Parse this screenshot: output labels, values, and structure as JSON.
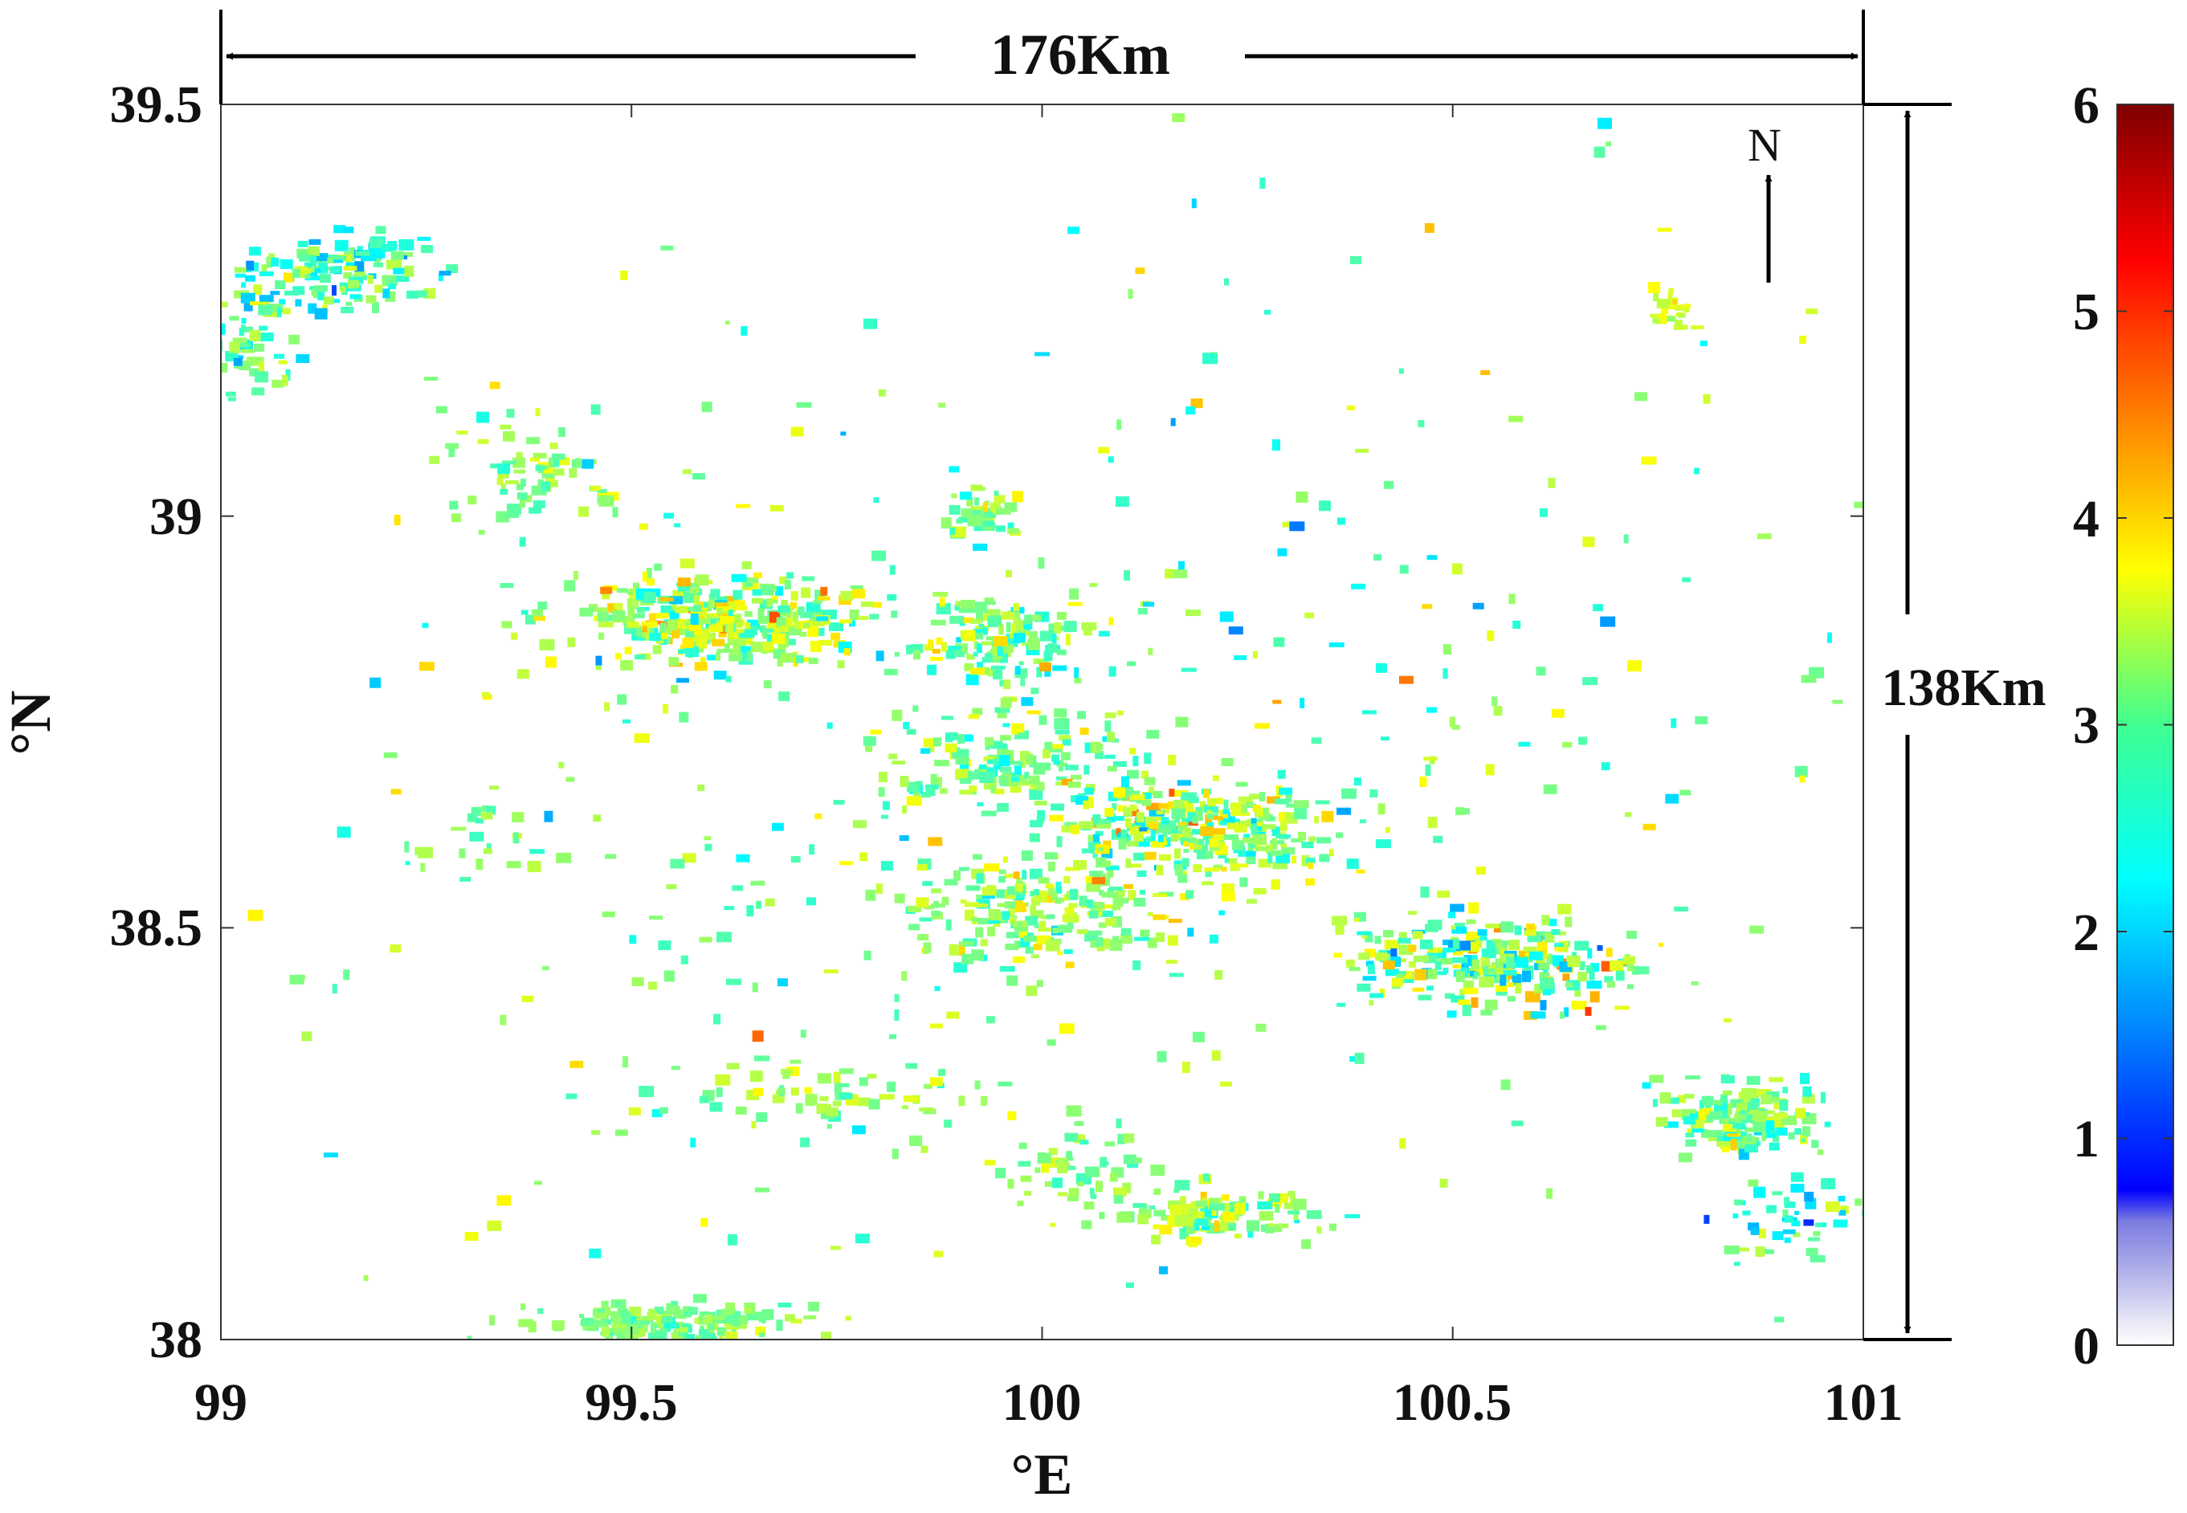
{
  "map": {
    "x_axis": {
      "label": "°E",
      "min": 99,
      "max": 101,
      "ticks": [
        "99",
        "99.5",
        "100",
        "100.5",
        "101"
      ]
    },
    "y_axis": {
      "label": "°N",
      "min": 38,
      "max": 39.5,
      "ticks": [
        "38",
        "38.5",
        "39",
        "39.5"
      ]
    },
    "width_label": "176Km",
    "height_label": "138Km",
    "north_label": "N",
    "colorbar": {
      "min": 0,
      "max": 6,
      "ticks": [
        "0",
        "1",
        "2",
        "3",
        "4",
        "5",
        "6"
      ],
      "colormap": "jet",
      "low_end_color": "#ffffff",
      "high_end_color": "#7f0000"
    },
    "clusters": [
      {
        "lon": 99.15,
        "lat": 39.3,
        "r_lon": 0.1,
        "r_lat": 0.04,
        "count": 120,
        "mean": 2.6,
        "spread": 0.9
      },
      {
        "lon": 99.05,
        "lat": 39.22,
        "r_lon": 0.05,
        "r_lat": 0.08,
        "count": 60,
        "mean": 2.8,
        "spread": 0.8
      },
      {
        "lon": 99.4,
        "lat": 39.05,
        "r_lon": 0.12,
        "r_lat": 0.06,
        "count": 70,
        "mean": 3.1,
        "spread": 0.5
      },
      {
        "lon": 99.6,
        "lat": 38.87,
        "r_lon": 0.15,
        "r_lat": 0.05,
        "count": 340,
        "mean": 3.2,
        "spread": 0.9
      },
      {
        "lon": 99.95,
        "lat": 38.85,
        "r_lon": 0.1,
        "r_lat": 0.05,
        "count": 140,
        "mean": 3.0,
        "spread": 0.7
      },
      {
        "lon": 99.93,
        "lat": 39.0,
        "r_lon": 0.05,
        "r_lat": 0.03,
        "count": 40,
        "mean": 3.0,
        "spread": 0.8
      },
      {
        "lon": 99.95,
        "lat": 38.7,
        "r_lon": 0.15,
        "r_lat": 0.05,
        "count": 150,
        "mean": 3.0,
        "spread": 0.6
      },
      {
        "lon": 100.2,
        "lat": 38.62,
        "r_lon": 0.15,
        "r_lat": 0.05,
        "count": 300,
        "mean": 3.1,
        "spread": 1.0
      },
      {
        "lon": 100.0,
        "lat": 38.52,
        "r_lon": 0.14,
        "r_lat": 0.06,
        "count": 200,
        "mean": 3.1,
        "spread": 0.7
      },
      {
        "lon": 100.55,
        "lat": 38.46,
        "r_lon": 0.14,
        "r_lat": 0.05,
        "count": 260,
        "mean": 3.0,
        "spread": 1.1
      },
      {
        "lon": 100.85,
        "lat": 38.27,
        "r_lon": 0.08,
        "r_lat": 0.04,
        "count": 150,
        "mean": 2.9,
        "spread": 0.7
      },
      {
        "lon": 100.92,
        "lat": 38.15,
        "r_lon": 0.08,
        "r_lat": 0.05,
        "count": 50,
        "mean": 2.5,
        "spread": 0.9
      },
      {
        "lon": 99.55,
        "lat": 38.02,
        "r_lon": 0.15,
        "r_lat": 0.02,
        "count": 160,
        "mean": 3.0,
        "spread": 0.4
      },
      {
        "lon": 100.22,
        "lat": 38.15,
        "r_lon": 0.12,
        "r_lat": 0.03,
        "count": 110,
        "mean": 3.2,
        "spread": 0.6
      },
      {
        "lon": 100.05,
        "lat": 38.2,
        "r_lon": 0.08,
        "r_lat": 0.05,
        "count": 60,
        "mean": 3.0,
        "spread": 0.4
      },
      {
        "lon": 99.75,
        "lat": 38.3,
        "r_lon": 0.15,
        "r_lat": 0.03,
        "count": 60,
        "mean": 3.2,
        "spread": 0.5
      },
      {
        "lon": 100.77,
        "lat": 39.25,
        "r_lon": 0.03,
        "r_lat": 0.02,
        "count": 25,
        "mean": 3.5,
        "spread": 0.3
      },
      {
        "lon": 99.3,
        "lat": 38.6,
        "r_lon": 0.1,
        "r_lat": 0.05,
        "count": 25,
        "mean": 3.0,
        "spread": 0.5
      },
      {
        "lon": 100.4,
        "lat": 38.75,
        "r_lon": 0.6,
        "r_lat": 0.4,
        "count": 140,
        "mean": 3.0,
        "spread": 1.0
      },
      {
        "lon": 99.7,
        "lat": 38.55,
        "r_lon": 0.5,
        "r_lat": 0.4,
        "count": 140,
        "mean": 3.0,
        "spread": 0.8
      },
      {
        "lon": 100.0,
        "lat": 38.8,
        "r_lon": 0.95,
        "r_lat": 0.65,
        "count": 160,
        "mean": 3.0,
        "spread": 1.1
      }
    ]
  }
}
